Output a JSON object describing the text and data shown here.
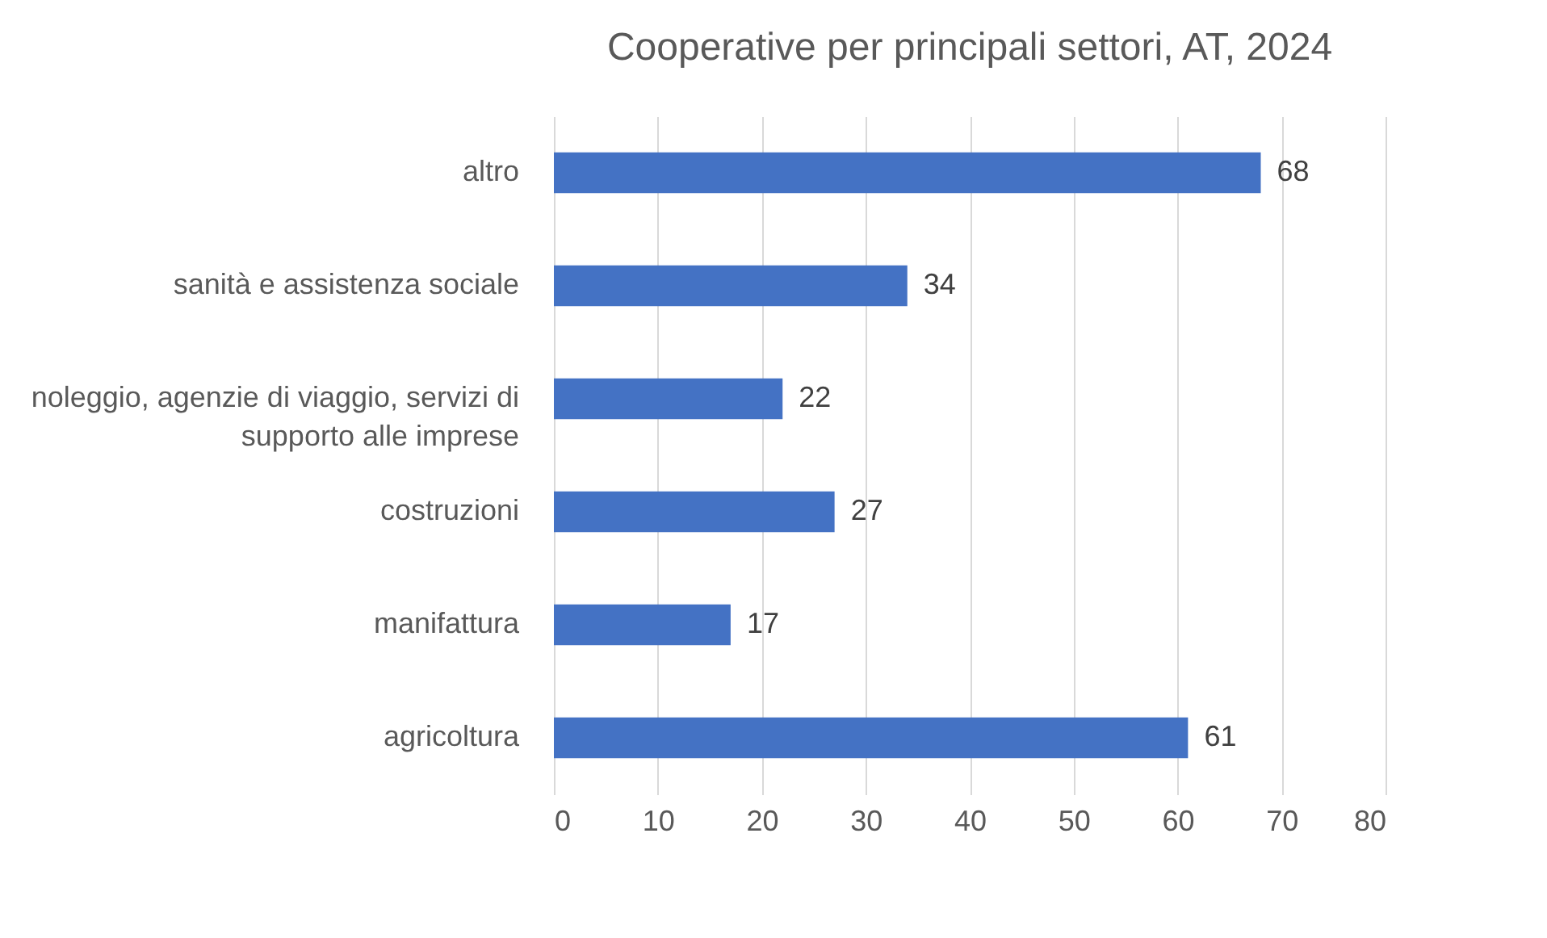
{
  "chart_data": {
    "type": "bar",
    "orientation": "horizontal",
    "title": "Cooperative per principali settori, AT, 2024",
    "categories": [
      "altro",
      "sanità e assistenza sociale",
      "noleggio, agenzie di viaggio, servizi di supporto alle imprese",
      "costruzioni",
      "manifattura",
      "agricoltura"
    ],
    "values": [
      68,
      34,
      22,
      27,
      17,
      61
    ],
    "color": "#4472c4",
    "xlim": [
      0,
      80
    ],
    "xticks": [
      0,
      10,
      20,
      30,
      40,
      50,
      60,
      70,
      80
    ],
    "grid": "x",
    "data_labels": true
  }
}
